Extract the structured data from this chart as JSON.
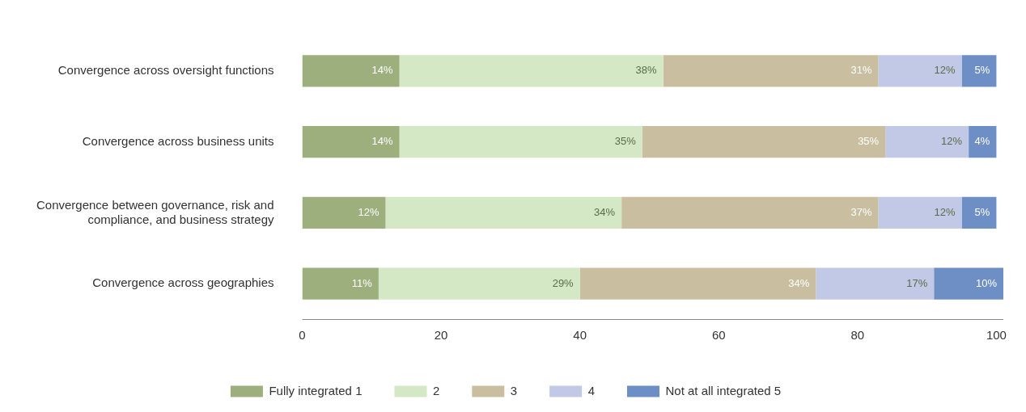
{
  "chart_data": {
    "type": "bar",
    "orientation": "horizontal",
    "stacked": true,
    "categories": [
      "Convergence across oversight functions",
      "Convergence across business units",
      "Convergence between governance, risk and compliance, and business strategy",
      "Convergence across geographies"
    ],
    "series": [
      {
        "name": "Fully integrated 1",
        "color": "#9caf7c",
        "values": [
          14,
          14,
          12,
          11
        ],
        "value_labels": [
          "14%",
          "14%",
          "12%",
          "11%"
        ]
      },
      {
        "name": "2",
        "color": "#d5e8c5",
        "values": [
          38,
          35,
          34,
          29
        ],
        "value_labels": [
          "38%",
          "35%",
          "34%",
          "29%"
        ]
      },
      {
        "name": "3",
        "color": "#c9bfa0",
        "values": [
          31,
          35,
          37,
          34
        ],
        "value_labels": [
          "31%",
          "35%",
          "37%",
          "34%"
        ]
      },
      {
        "name": "4",
        "color": "#c2c9e6",
        "values": [
          12,
          12,
          12,
          17
        ],
        "value_labels": [
          "12%",
          "12%",
          "12%",
          "17%"
        ]
      },
      {
        "name": "Not at all integrated 5",
        "color": "#6e8fc6",
        "values": [
          5,
          4,
          5,
          10
        ],
        "value_labels": [
          "5%",
          "4%",
          "5%",
          "10%"
        ]
      }
    ],
    "xlim": [
      0,
      101
    ],
    "xticks": [
      0,
      20,
      40,
      60,
      80,
      100
    ],
    "grid": false,
    "legend": "bottom"
  }
}
